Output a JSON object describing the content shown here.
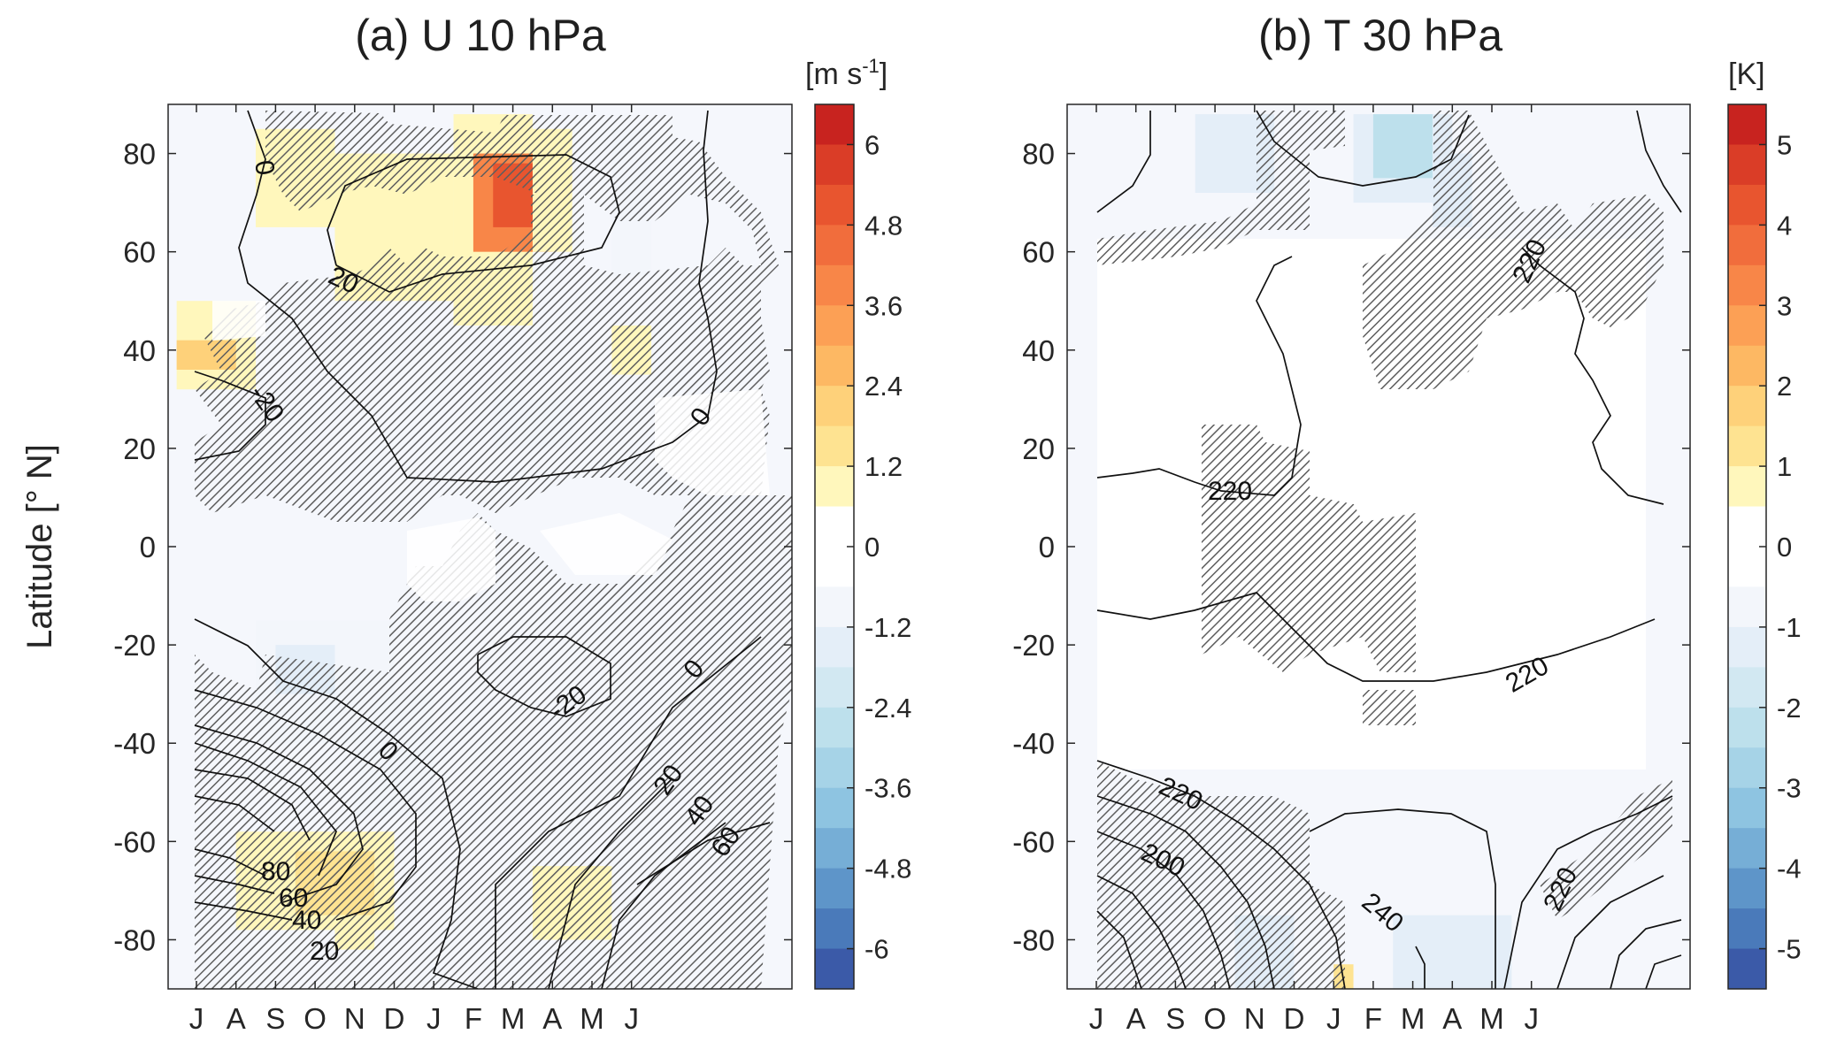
{
  "figure": {
    "ylabel": "Latitude [° N]"
  },
  "chart_data": [
    {
      "type": "heatmap",
      "panel": "a",
      "title": "(a)  U 10 hPa",
      "unit_label": "[m s-1]",
      "ylabel": "Latitude [° N]",
      "x_categories": [
        "J",
        "A",
        "S",
        "O",
        "N",
        "D",
        "J",
        "F",
        "M",
        "A",
        "M",
        "J"
      ],
      "y_ticks": [
        80,
        60,
        40,
        20,
        0,
        -20,
        -40,
        -60,
        -80
      ],
      "ylim": [
        -90,
        90
      ],
      "colorbar": {
        "min": -6.6,
        "max": 6.6,
        "step": 0.6,
        "ticks": [
          6,
          4.8,
          3.6,
          2.4,
          1.2,
          0,
          -1.2,
          -2.4,
          -3.6,
          -4.8,
          -6
        ]
      },
      "anomaly_patches": [
        {
          "month_start": 1.5,
          "month_end": 3.5,
          "lat_max": 85,
          "lat_min": 65,
          "value": 0.8
        },
        {
          "month_start": 3.5,
          "month_end": 6.5,
          "lat_max": 80,
          "lat_min": 50,
          "value": 0.9
        },
        {
          "month_start": 6.5,
          "month_end": 8.5,
          "lat_max": 88,
          "lat_min": 45,
          "value": 1.0
        },
        {
          "month_start": 7,
          "month_end": 9,
          "lat_max": 80,
          "lat_min": 60,
          "value": 4.0
        },
        {
          "month_start": 7.5,
          "month_end": 8.5,
          "lat_max": 78,
          "lat_min": 65,
          "value": 4.8
        },
        {
          "month_start": 8.5,
          "month_end": 9.5,
          "lat_max": 85,
          "lat_min": 60,
          "value": 1.0
        },
        {
          "month_start": -0.5,
          "month_end": 1.5,
          "lat_max": 50,
          "lat_min": 32,
          "value": 0.9
        },
        {
          "month_start": -0.5,
          "month_end": 1,
          "lat_max": 42,
          "lat_min": 36,
          "value": 1.8
        },
        {
          "month_start": 10.5,
          "month_end": 11.5,
          "lat_max": 45,
          "lat_min": 35,
          "value": 0.7
        },
        {
          "month_start": 10.5,
          "month_end": 11.5,
          "lat_max": 85,
          "lat_min": 55,
          "value": -0.5
        },
        {
          "month_start": 7.5,
          "month_end": 9.5,
          "lat_max": 30,
          "lat_min": 20,
          "value": -0.6
        },
        {
          "month_start": 1.5,
          "month_end": 5,
          "lat_max": -15,
          "lat_min": -40,
          "value": -0.8
        },
        {
          "month_start": 2,
          "month_end": 3.5,
          "lat_max": -20,
          "lat_min": -30,
          "value": -1.2
        },
        {
          "month_start": 4,
          "month_end": 6,
          "lat_max": -30,
          "lat_min": -55,
          "value": -0.7
        },
        {
          "month_start": 1,
          "month_end": 5,
          "lat_max": -58,
          "lat_min": -78,
          "value": 0.9
        },
        {
          "month_start": 2.5,
          "month_end": 4.5,
          "lat_max": -62,
          "lat_min": -75,
          "value": 1.5
        },
        {
          "month_start": 3.5,
          "month_end": 4.5,
          "lat_max": -75,
          "lat_min": -82,
          "value": 0.8
        },
        {
          "month_start": 8.5,
          "month_end": 10.5,
          "lat_max": -65,
          "lat_min": -80,
          "value": 0.8
        }
      ],
      "contours": [
        {
          "level": 0,
          "label": "0"
        },
        {
          "level": 20,
          "label": "20"
        },
        {
          "level": -20,
          "label": "-20"
        },
        {
          "level": 40,
          "label": "40"
        },
        {
          "level": 60,
          "label": "60"
        },
        {
          "level": 80,
          "label": "80"
        }
      ]
    },
    {
      "type": "heatmap",
      "panel": "b",
      "title": "(b)  T 30 hPa",
      "unit_label": "[K]",
      "x_categories": [
        "J",
        "A",
        "S",
        "O",
        "N",
        "D",
        "J",
        "F",
        "M",
        "A",
        "M",
        "J"
      ],
      "y_ticks": [
        80,
        60,
        40,
        20,
        0,
        -20,
        -40,
        -60,
        -80
      ],
      "ylim": [
        -90,
        90
      ],
      "colorbar": {
        "min": -5.5,
        "max": 5.5,
        "step": 0.5,
        "ticks": [
          5,
          4,
          3,
          2,
          1,
          0,
          -1,
          -2,
          -3,
          -4,
          -5
        ]
      },
      "anomaly_patches": [
        {
          "month_start": 2.5,
          "month_end": 4.5,
          "lat_max": 88,
          "lat_min": 72,
          "value": -0.6
        },
        {
          "month_start": 6.5,
          "month_end": 9,
          "lat_max": 88,
          "lat_min": 70,
          "value": -0.7
        },
        {
          "month_start": 7,
          "month_end": 8.5,
          "lat_max": 88,
          "lat_min": 75,
          "value": -1.8
        },
        {
          "month_start": 8.5,
          "month_end": 9.5,
          "lat_max": 80,
          "lat_min": 65,
          "value": -0.6
        },
        {
          "month_start": 7.5,
          "month_end": 10.5,
          "lat_max": -75,
          "lat_min": -90,
          "value": -0.6
        },
        {
          "month_start": 3.5,
          "month_end": 5,
          "lat_max": -75,
          "lat_min": -90,
          "value": -0.5
        },
        {
          "month_start": 6,
          "month_end": 6.5,
          "lat_max": -85,
          "lat_min": -90,
          "value": 0.7
        }
      ],
      "contours": [
        {
          "level": 220,
          "label": "220"
        },
        {
          "level": 200,
          "label": "200"
        },
        {
          "level": 240,
          "label": "240"
        }
      ]
    }
  ]
}
